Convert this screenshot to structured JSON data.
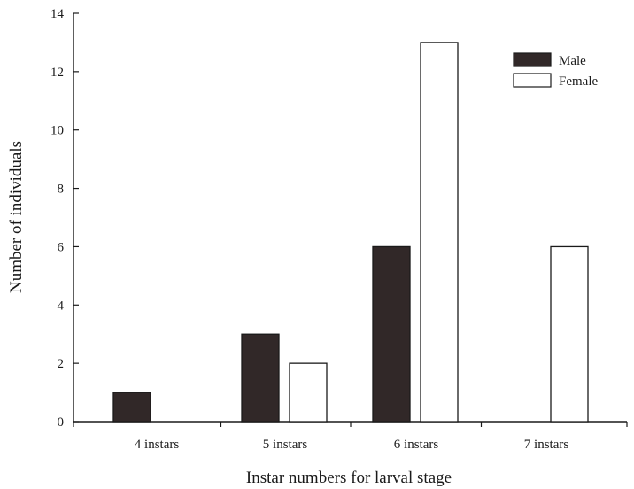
{
  "chart_data": {
    "type": "bar",
    "categories": [
      "4 instars",
      "5 instars",
      "6 instars",
      "7 instars"
    ],
    "series": [
      {
        "name": "Male",
        "values": [
          1,
          3,
          6,
          0
        ],
        "color": "#312828"
      },
      {
        "name": "Female",
        "values": [
          0,
          2,
          13,
          6
        ],
        "color": "#ffffff"
      }
    ],
    "xlabel": "Instar numbers for larval stage",
    "ylabel": "Number of individuals",
    "ylim": [
      0,
      14
    ],
    "yticks": [
      0,
      2,
      4,
      6,
      8,
      10,
      12,
      14
    ],
    "grid": false,
    "legend_position": "top-right"
  }
}
